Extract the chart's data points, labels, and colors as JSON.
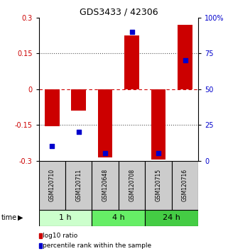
{
  "title": "GDS3433 / 42306",
  "samples": [
    "GSM120710",
    "GSM120711",
    "GSM120648",
    "GSM120708",
    "GSM120715",
    "GSM120716"
  ],
  "groups": [
    {
      "label": "1 h",
      "indices": [
        0,
        1
      ]
    },
    {
      "label": "4 h",
      "indices": [
        2,
        3
      ]
    },
    {
      "label": "24 h",
      "indices": [
        4,
        5
      ]
    }
  ],
  "group_colors": [
    "#ccffcc",
    "#66ee66",
    "#44cc44"
  ],
  "log10_ratio": [
    -0.155,
    -0.09,
    -0.285,
    0.225,
    -0.295,
    0.27
  ],
  "percentile_rank": [
    10,
    20,
    5,
    90,
    5,
    70
  ],
  "ylim_left": [
    -0.3,
    0.3
  ],
  "ylim_right": [
    0,
    100
  ],
  "yticks_left": [
    -0.3,
    -0.15,
    0,
    0.15,
    0.3
  ],
  "yticks_right": [
    0,
    25,
    50,
    75,
    100
  ],
  "ytick_labels_left": [
    "-0.3",
    "-0.15",
    "0",
    "0.15",
    "0.3"
  ],
  "ytick_labels_right": [
    "0",
    "25",
    "50",
    "75",
    "100%"
  ],
  "bar_color": "#cc0000",
  "dot_color": "#0000cc",
  "bar_width": 0.55,
  "dot_size": 18,
  "left_tick_color": "#cc0000",
  "right_tick_color": "#0000cc",
  "grid_color": "#555555",
  "zero_line_color": "#cc0000",
  "gray_bg": "#cccccc",
  "legend_items": [
    {
      "label": "log10 ratio",
      "color": "#cc0000"
    },
    {
      "label": "percentile rank within the sample",
      "color": "#0000cc"
    }
  ]
}
